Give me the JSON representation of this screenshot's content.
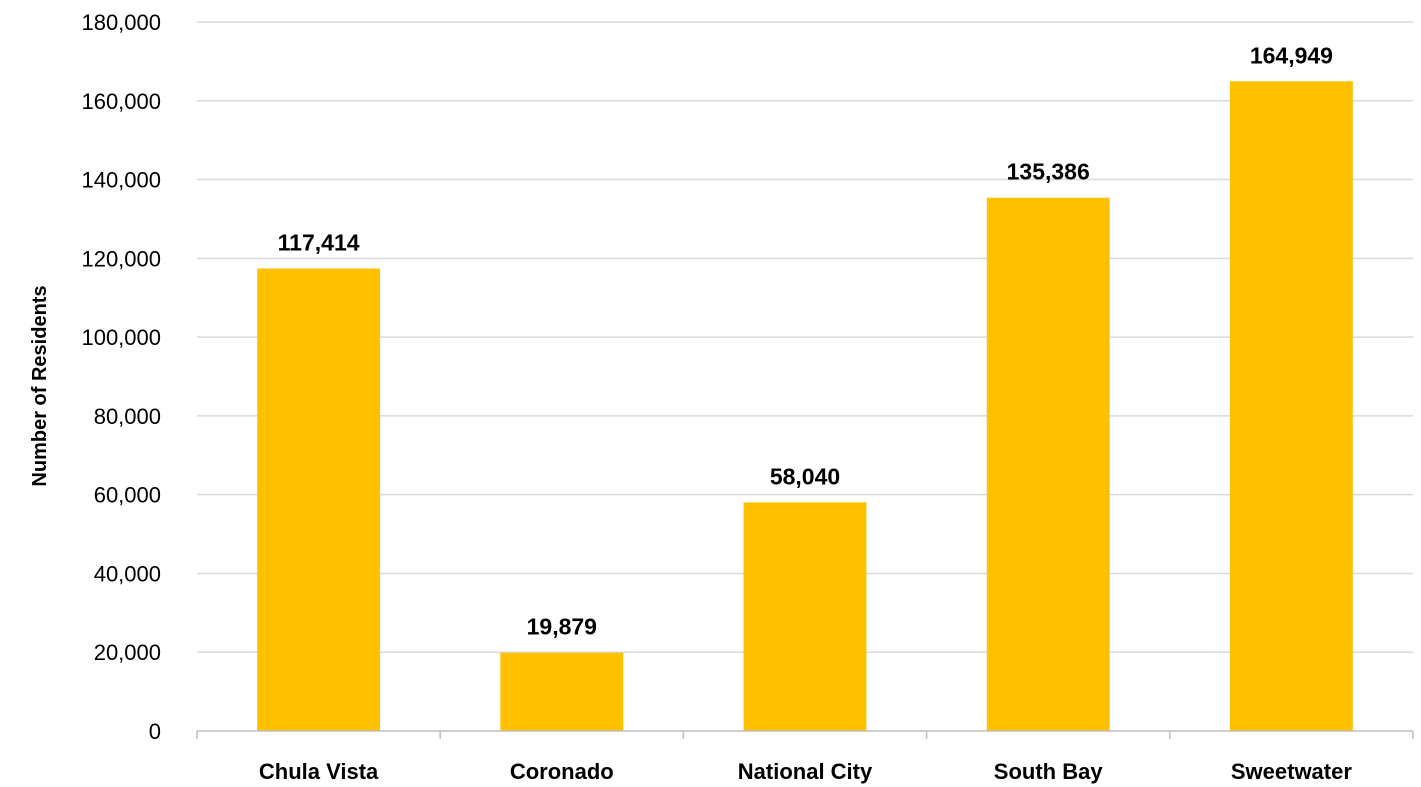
{
  "chart_data": {
    "type": "bar",
    "title": "",
    "xlabel": "",
    "ylabel": "Number of Residents",
    "categories": [
      "Chula Vista",
      "Coronado",
      "National City",
      "South Bay",
      "Sweetwater"
    ],
    "values": [
      117414,
      19879,
      58040,
      135386,
      164949
    ],
    "value_labels": [
      "117,414",
      "19,879",
      "58,040",
      "135,386",
      "164,949"
    ],
    "ylim": [
      0,
      180000
    ],
    "yticks": [
      0,
      20000,
      40000,
      60000,
      80000,
      100000,
      120000,
      140000,
      160000,
      180000
    ],
    "ytick_labels": [
      "0",
      "20,000",
      "40,000",
      "60,000",
      "80,000",
      "100,000",
      "120,000",
      "140,000",
      "160,000",
      "180,000"
    ],
    "grid": true,
    "legend": "none",
    "bar_color": "#FFC000"
  }
}
